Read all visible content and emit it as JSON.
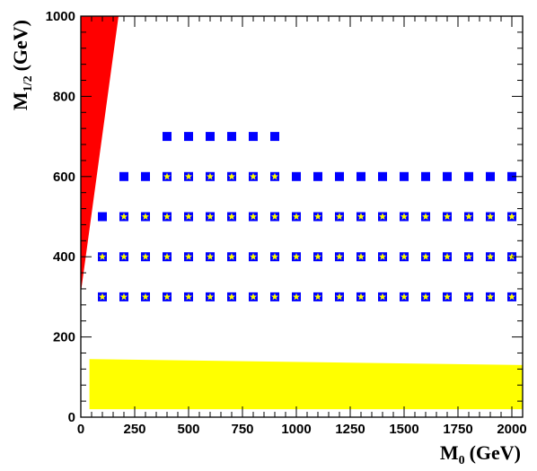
{
  "chart_data": {
    "type": "scatter",
    "title": "",
    "xlabel_parts": {
      "base": "M",
      "sub": "0",
      "unit": "(GeV)"
    },
    "ylabel_parts": {
      "base": "M",
      "sub": "1/2",
      "unit": "(GeV)"
    },
    "xlim": [
      0,
      2050
    ],
    "ylim": [
      0,
      1000
    ],
    "x_ticks": [
      0,
      250,
      500,
      750,
      1000,
      1250,
      1500,
      1750,
      2000
    ],
    "y_ticks": [
      0,
      200,
      400,
      600,
      800,
      1000
    ],
    "grid": false,
    "legend": "none",
    "colors": {
      "excluded_region": "#ff0000",
      "lep_region": "#ffff00",
      "square_marker": "#0000ff",
      "star_marker": "#ffff00"
    },
    "regions": [
      {
        "name": "excluded-region",
        "color": "#ff0000",
        "polygon": [
          [
            0,
            310
          ],
          [
            0,
            1000
          ],
          [
            175,
            1000
          ]
        ]
      },
      {
        "name": "lep-region",
        "color": "#ffff00",
        "polygon": [
          [
            40,
            20
          ],
          [
            40,
            145
          ],
          [
            2050,
            130
          ],
          [
            2050,
            20
          ]
        ]
      }
    ],
    "series": [
      {
        "marker": "square",
        "points": [
          [
            400,
            700
          ],
          [
            500,
            700
          ],
          [
            600,
            700
          ],
          [
            700,
            700
          ],
          [
            800,
            700
          ],
          [
            900,
            700
          ],
          [
            200,
            600
          ],
          [
            300,
            600
          ],
          [
            400,
            600
          ],
          [
            500,
            600
          ],
          [
            600,
            600
          ],
          [
            700,
            600
          ],
          [
            800,
            600
          ],
          [
            900,
            600
          ],
          [
            1000,
            600
          ],
          [
            1100,
            600
          ],
          [
            1200,
            600
          ],
          [
            1300,
            600
          ],
          [
            1400,
            600
          ],
          [
            1500,
            600
          ],
          [
            1600,
            600
          ],
          [
            1700,
            600
          ],
          [
            1800,
            600
          ],
          [
            1900,
            600
          ],
          [
            2000,
            600
          ],
          [
            100,
            500
          ],
          [
            200,
            500
          ],
          [
            300,
            500
          ],
          [
            400,
            500
          ],
          [
            500,
            500
          ],
          [
            600,
            500
          ],
          [
            700,
            500
          ],
          [
            800,
            500
          ],
          [
            900,
            500
          ],
          [
            1000,
            500
          ],
          [
            1100,
            500
          ],
          [
            1200,
            500
          ],
          [
            1300,
            500
          ],
          [
            1400,
            500
          ],
          [
            1500,
            500
          ],
          [
            1600,
            500
          ],
          [
            1700,
            500
          ],
          [
            1800,
            500
          ],
          [
            1900,
            500
          ],
          [
            2000,
            500
          ],
          [
            100,
            400
          ],
          [
            200,
            400
          ],
          [
            300,
            400
          ],
          [
            400,
            400
          ],
          [
            500,
            400
          ],
          [
            600,
            400
          ],
          [
            700,
            400
          ],
          [
            800,
            400
          ],
          [
            900,
            400
          ],
          [
            1000,
            400
          ],
          [
            1100,
            400
          ],
          [
            1200,
            400
          ],
          [
            1300,
            400
          ],
          [
            1400,
            400
          ],
          [
            1500,
            400
          ],
          [
            1600,
            400
          ],
          [
            1700,
            400
          ],
          [
            1800,
            400
          ],
          [
            1900,
            400
          ],
          [
            2000,
            400
          ],
          [
            100,
            300
          ],
          [
            200,
            300
          ],
          [
            300,
            300
          ],
          [
            400,
            300
          ],
          [
            500,
            300
          ],
          [
            600,
            300
          ],
          [
            700,
            300
          ],
          [
            800,
            300
          ],
          [
            900,
            300
          ],
          [
            1000,
            300
          ],
          [
            1100,
            300
          ],
          [
            1200,
            300
          ],
          [
            1300,
            300
          ],
          [
            1400,
            300
          ],
          [
            1500,
            300
          ],
          [
            1600,
            300
          ],
          [
            1700,
            300
          ],
          [
            1800,
            300
          ],
          [
            1900,
            300
          ],
          [
            2000,
            300
          ]
        ]
      },
      {
        "marker": "star",
        "points": [
          [
            400,
            600
          ],
          [
            500,
            600
          ],
          [
            600,
            600
          ],
          [
            700,
            600
          ],
          [
            800,
            600
          ],
          [
            900,
            600
          ],
          [
            200,
            500
          ],
          [
            300,
            500
          ],
          [
            400,
            500
          ],
          [
            500,
            500
          ],
          [
            600,
            500
          ],
          [
            700,
            500
          ],
          [
            800,
            500
          ],
          [
            900,
            500
          ],
          [
            1000,
            500
          ],
          [
            1100,
            500
          ],
          [
            1200,
            500
          ],
          [
            1300,
            500
          ],
          [
            1400,
            500
          ],
          [
            1500,
            500
          ],
          [
            1600,
            500
          ],
          [
            1700,
            500
          ],
          [
            1800,
            500
          ],
          [
            1900,
            500
          ],
          [
            2000,
            500
          ],
          [
            100,
            400
          ],
          [
            200,
            400
          ],
          [
            300,
            400
          ],
          [
            400,
            400
          ],
          [
            500,
            400
          ],
          [
            600,
            400
          ],
          [
            700,
            400
          ],
          [
            800,
            400
          ],
          [
            900,
            400
          ],
          [
            1000,
            400
          ],
          [
            1100,
            400
          ],
          [
            1200,
            400
          ],
          [
            1300,
            400
          ],
          [
            1400,
            400
          ],
          [
            1500,
            400
          ],
          [
            1600,
            400
          ],
          [
            1700,
            400
          ],
          [
            1800,
            400
          ],
          [
            1900,
            400
          ],
          [
            2000,
            400
          ],
          [
            100,
            300
          ],
          [
            200,
            300
          ],
          [
            300,
            300
          ],
          [
            400,
            300
          ],
          [
            500,
            300
          ],
          [
            600,
            300
          ],
          [
            700,
            300
          ],
          [
            800,
            300
          ],
          [
            900,
            300
          ],
          [
            1000,
            300
          ],
          [
            1100,
            300
          ],
          [
            1200,
            300
          ],
          [
            1300,
            300
          ],
          [
            1400,
            300
          ],
          [
            1500,
            300
          ],
          [
            1600,
            300
          ],
          [
            1700,
            300
          ],
          [
            1800,
            300
          ],
          [
            1900,
            300
          ],
          [
            2000,
            300
          ]
        ]
      }
    ]
  }
}
